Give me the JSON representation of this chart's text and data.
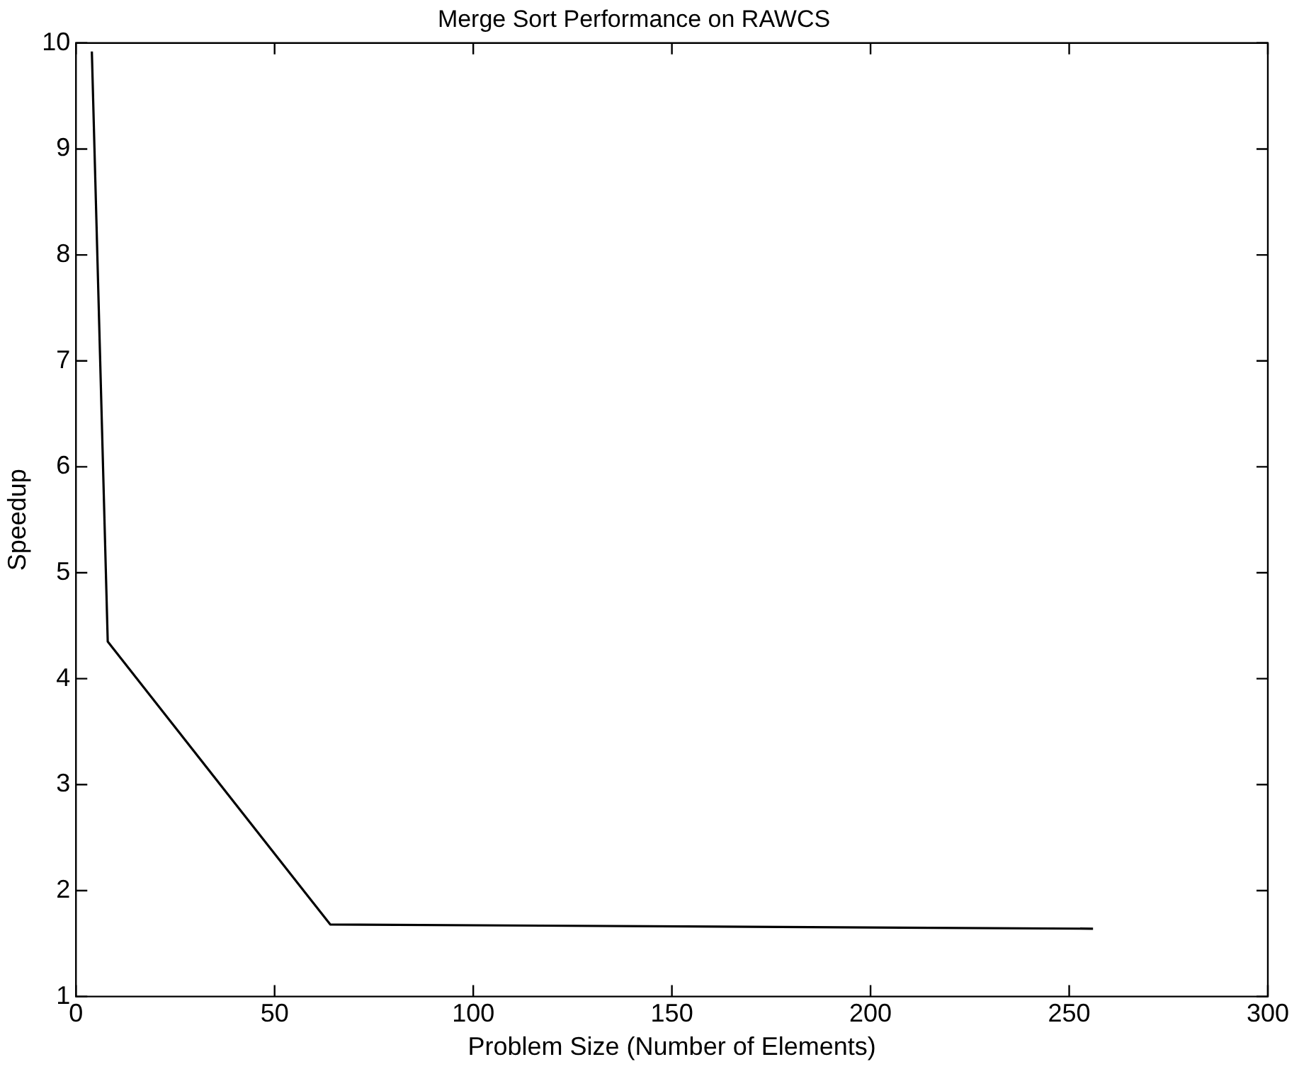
{
  "chart_data": {
    "type": "line",
    "title": "Merge Sort Performance on RAWCS",
    "xlabel": "Problem Size (Number of Elements)",
    "ylabel": "Speedup",
    "x": [
      4,
      8,
      64,
      256
    ],
    "series": [
      {
        "color": "#000000",
        "values": [
          9.92,
          4.35,
          1.68,
          1.64
        ]
      }
    ],
    "xlim": [
      0,
      300
    ],
    "xticks": [
      0,
      50,
      100,
      150,
      200,
      250,
      300
    ],
    "ylim": [
      1,
      10
    ],
    "yticks": [
      1,
      2,
      3,
      4,
      5,
      6,
      7,
      8,
      9,
      10
    ],
    "grid": false,
    "legend": false,
    "marker": "none",
    "line_style": "solid"
  }
}
